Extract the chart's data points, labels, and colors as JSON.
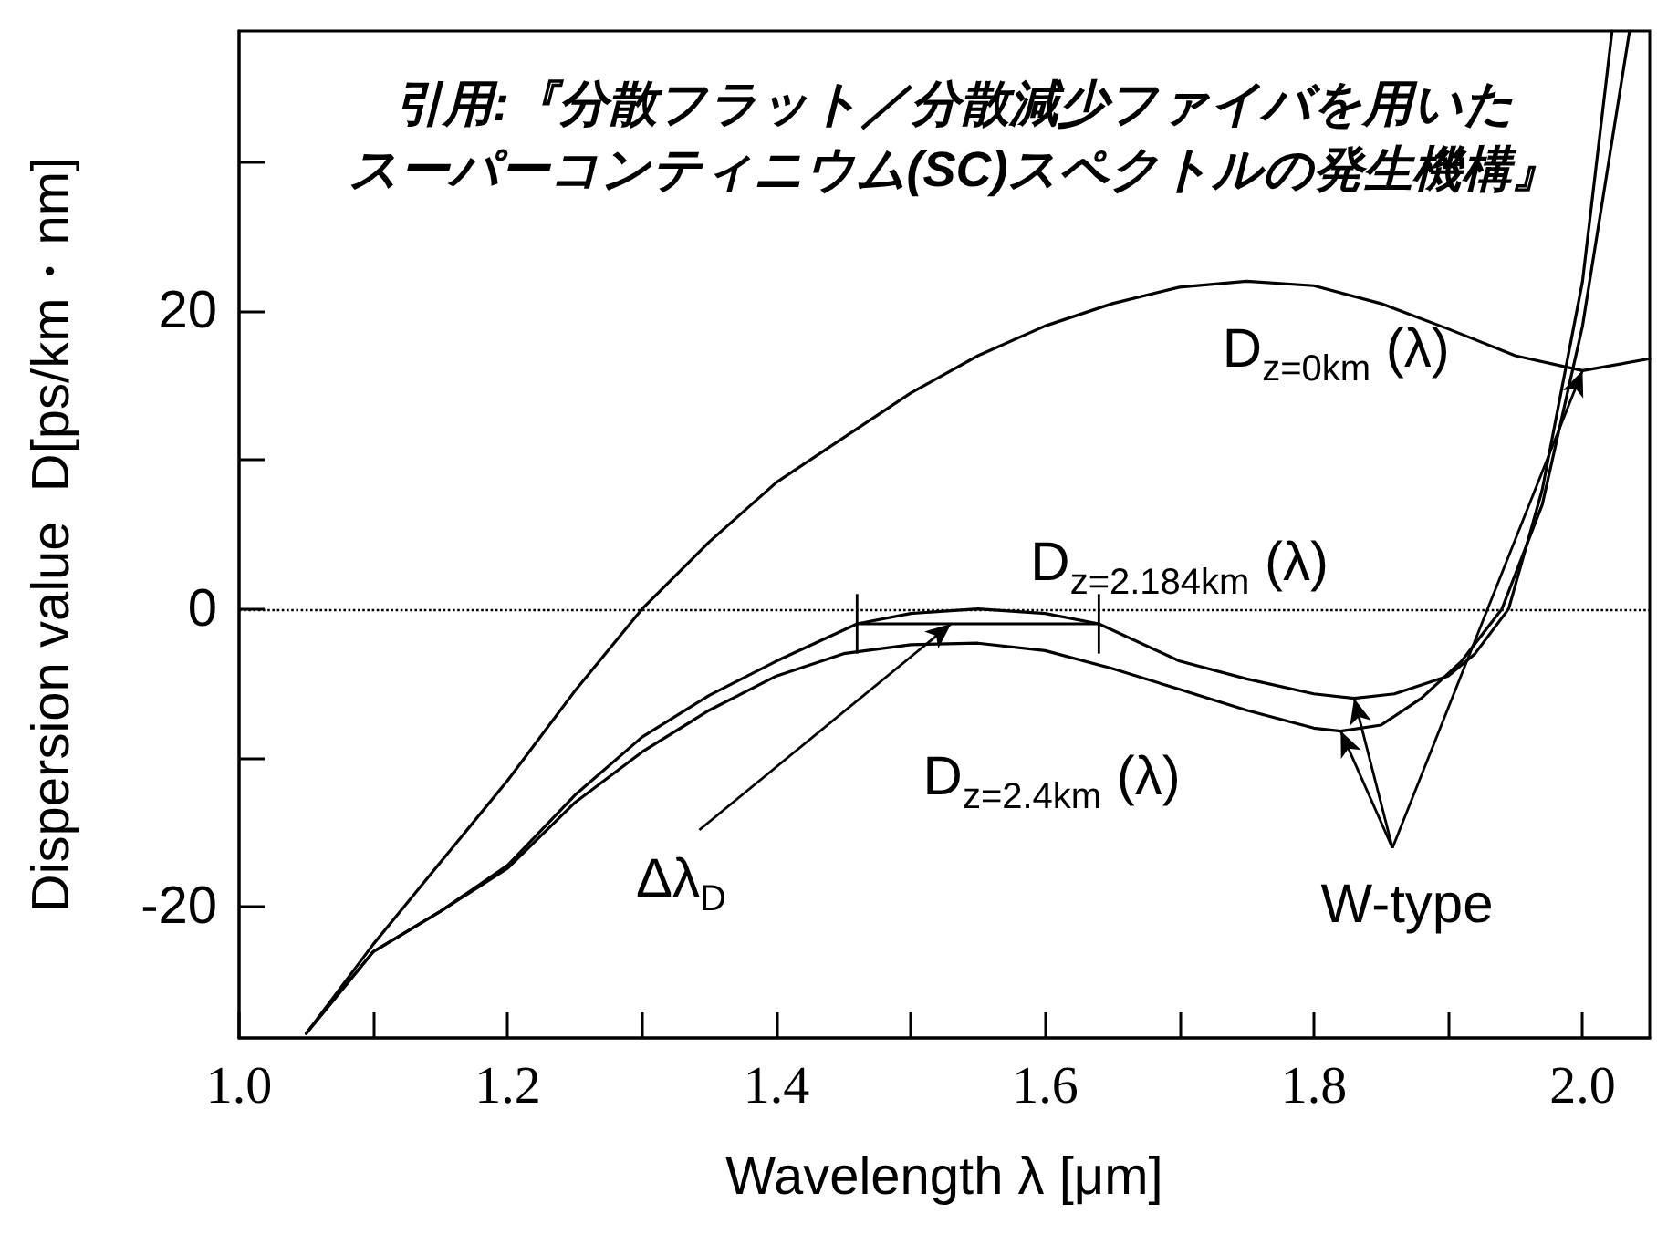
{
  "chart_data": {
    "type": "line",
    "title": "引用:『分散フラット／分散減少ファイバを用いたスーパーコンティニウム(SC)スペクトルの発生機構』",
    "xlabel": "Wavelength λ [μm]",
    "ylabel": "Dispersion value  D[ps/km・nm]",
    "xlim": [
      1.0,
      2.05
    ],
    "xticks": [
      {
        "value": 1,
        "label": "1.0"
      },
      {
        "value": 1.1,
        "label": null
      },
      1.2,
      {
        "value": 1.3,
        "label": null
      },
      1.4,
      {
        "value": 1.5,
        "label": null
      },
      1.6,
      {
        "value": 1.7,
        "label": null
      },
      1.8,
      {
        "value": 1.9,
        "label": null
      },
      {
        "value": 2,
        "label": "2.0"
      }
    ],
    "ylim": [
      -28.8,
      38.8
    ],
    "yticks": [
      -20,
      {
        "value": -10,
        "label": null
      },
      0,
      {
        "value": 10,
        "label": null
      },
      20,
      {
        "value": 30,
        "label": null
      }
    ],
    "grid": false,
    "marker": "none",
    "line_style": "solid",
    "series": [
      {
        "color": "#000000",
        "x": [
          1.05,
          1.1,
          1.15,
          1.2,
          1.25,
          1.3,
          1.35,
          1.4,
          1.45,
          1.5,
          1.55,
          1.6,
          1.65,
          1.7,
          1.75,
          1.8,
          1.85,
          1.9,
          1.95,
          2.0,
          2.05
        ],
        "values": [
          -28.5,
          -22.5,
          -17,
          -11.5,
          -5.5,
          0,
          4.5,
          8.5,
          11.5,
          14.5,
          17,
          19,
          20.5,
          21.6,
          22,
          21.7,
          20.5,
          18.8,
          17,
          16,
          16.8
        ]
      },
      {
        "color": "#000000",
        "x": [
          1.05,
          1.1,
          1.15,
          1.2,
          1.25,
          1.3,
          1.35,
          1.4,
          1.46,
          1.5,
          1.55,
          1.6,
          1.64,
          1.7,
          1.75,
          1.8,
          1.83,
          1.86,
          1.9,
          1.92,
          1.945,
          1.97,
          2.0,
          2.022
        ],
        "values": [
          -28.5,
          -23,
          -20.3,
          -17.2,
          -12.5,
          -8.6,
          -5.8,
          -3.5,
          -1,
          -0.3,
          0,
          -0.3,
          -1,
          -3.5,
          -4.7,
          -5.7,
          -6,
          -5.7,
          -4.5,
          -3,
          0,
          8,
          22,
          38.8
        ]
      },
      {
        "color": "#000000",
        "x": [
          1.05,
          1.1,
          1.15,
          1.2,
          1.25,
          1.3,
          1.35,
          1.4,
          1.45,
          1.5,
          1.55,
          1.6,
          1.65,
          1.7,
          1.75,
          1.8,
          1.82,
          1.85,
          1.88,
          1.91,
          1.94,
          1.97,
          2.0,
          2.035
        ],
        "values": [
          -28.5,
          -23,
          -20.3,
          -17.4,
          -13,
          -9.6,
          -6.8,
          -4.5,
          -3,
          -2.4,
          -2.3,
          -2.8,
          -4,
          -5.4,
          -6.8,
          -8,
          -8.2,
          -7.8,
          -6,
          -3.5,
          0,
          7,
          19,
          38.8
        ]
      },
      {
        "color": "#000000",
        "x": [
          1.46,
          1.64
        ],
        "values": [
          -1,
          -1
        ],
        "errors": [
          2,
          2
        ]
      }
    ],
    "ref_lines": [
      {
        "axis": "y",
        "value": 0,
        "color": "#000000",
        "line_style": "dotted"
      }
    ],
    "annotations": [
      {
        "text": "D$_{z=0km}$ (λ)",
        "x": 1.86,
        "y": 20.5
      },
      {
        "text": "D$_{z=2.184km}$ (λ)",
        "x": 1.7,
        "y": -3.5
      },
      {
        "text": "D$_{z=2.4km}$ (λ)",
        "x": 1.7,
        "y": -5.4
      },
      {
        "text": "Δλ$_{D}$",
        "x": 1.53,
        "y": -1
      },
      {
        "text": "W-type",
        "x": 1.83,
        "y": -6
      }
    ]
  }
}
